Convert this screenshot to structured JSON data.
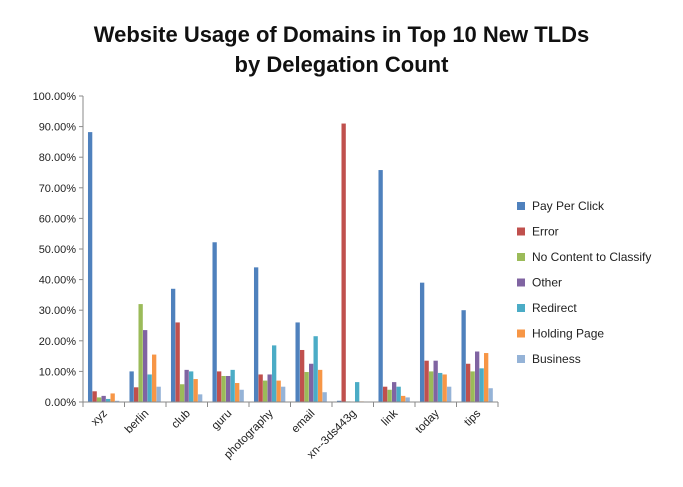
{
  "chart_data": {
    "type": "bar",
    "title_line1": "Website Usage of Domains in Top 10 New TLDs",
    "title_line2": "by Delegation Count",
    "categories": [
      "xyz",
      "berlin",
      "club",
      "guru",
      "photography",
      "email",
      "xn--3ds443g",
      "link",
      "today",
      "tips"
    ],
    "ylim": [
      0,
      100
    ],
    "yticks": [
      "0.00%",
      "10.00%",
      "20.00%",
      "30.00%",
      "40.00%",
      "50.00%",
      "60.00%",
      "70.00%",
      "80.00%",
      "90.00%",
      "100.00%"
    ],
    "grid": false,
    "legend_position": "right",
    "series": [
      {
        "name": "Pay Per Click",
        "color": "#4F81BD",
        "values": [
          88.2,
          10.0,
          37.0,
          52.2,
          44.0,
          26.0,
          0.4,
          75.8,
          39.0,
          30.0
        ]
      },
      {
        "name": "Error",
        "color": "#C0504D",
        "values": [
          3.5,
          4.8,
          26.0,
          10.0,
          9.0,
          17.0,
          91.0,
          5.0,
          13.5,
          12.5
        ]
      },
      {
        "name": "No Content to Classify",
        "color": "#9BBB59",
        "values": [
          1.5,
          32.0,
          5.8,
          8.5,
          7.0,
          9.8,
          0.2,
          4.0,
          10.0,
          10.0
        ]
      },
      {
        "name": "Other",
        "color": "#8064A2",
        "values": [
          2.0,
          23.5,
          10.5,
          8.5,
          9.0,
          12.5,
          0.1,
          6.5,
          13.5,
          16.5
        ]
      },
      {
        "name": "Redirect",
        "color": "#4BACC6",
        "values": [
          1.0,
          9.0,
          10.0,
          10.5,
          18.5,
          21.5,
          6.5,
          5.0,
          9.5,
          11.0
        ]
      },
      {
        "name": "Holding Page",
        "color": "#F79646",
        "values": [
          2.8,
          15.5,
          7.5,
          6.2,
          7.0,
          10.5,
          0.2,
          2.0,
          9.0,
          16.0
        ]
      },
      {
        "name": "Business",
        "color": "#95B3D7",
        "values": [
          0.4,
          5.0,
          2.5,
          4.0,
          5.0,
          3.2,
          0.1,
          1.5,
          5.0,
          4.5
        ]
      }
    ]
  }
}
